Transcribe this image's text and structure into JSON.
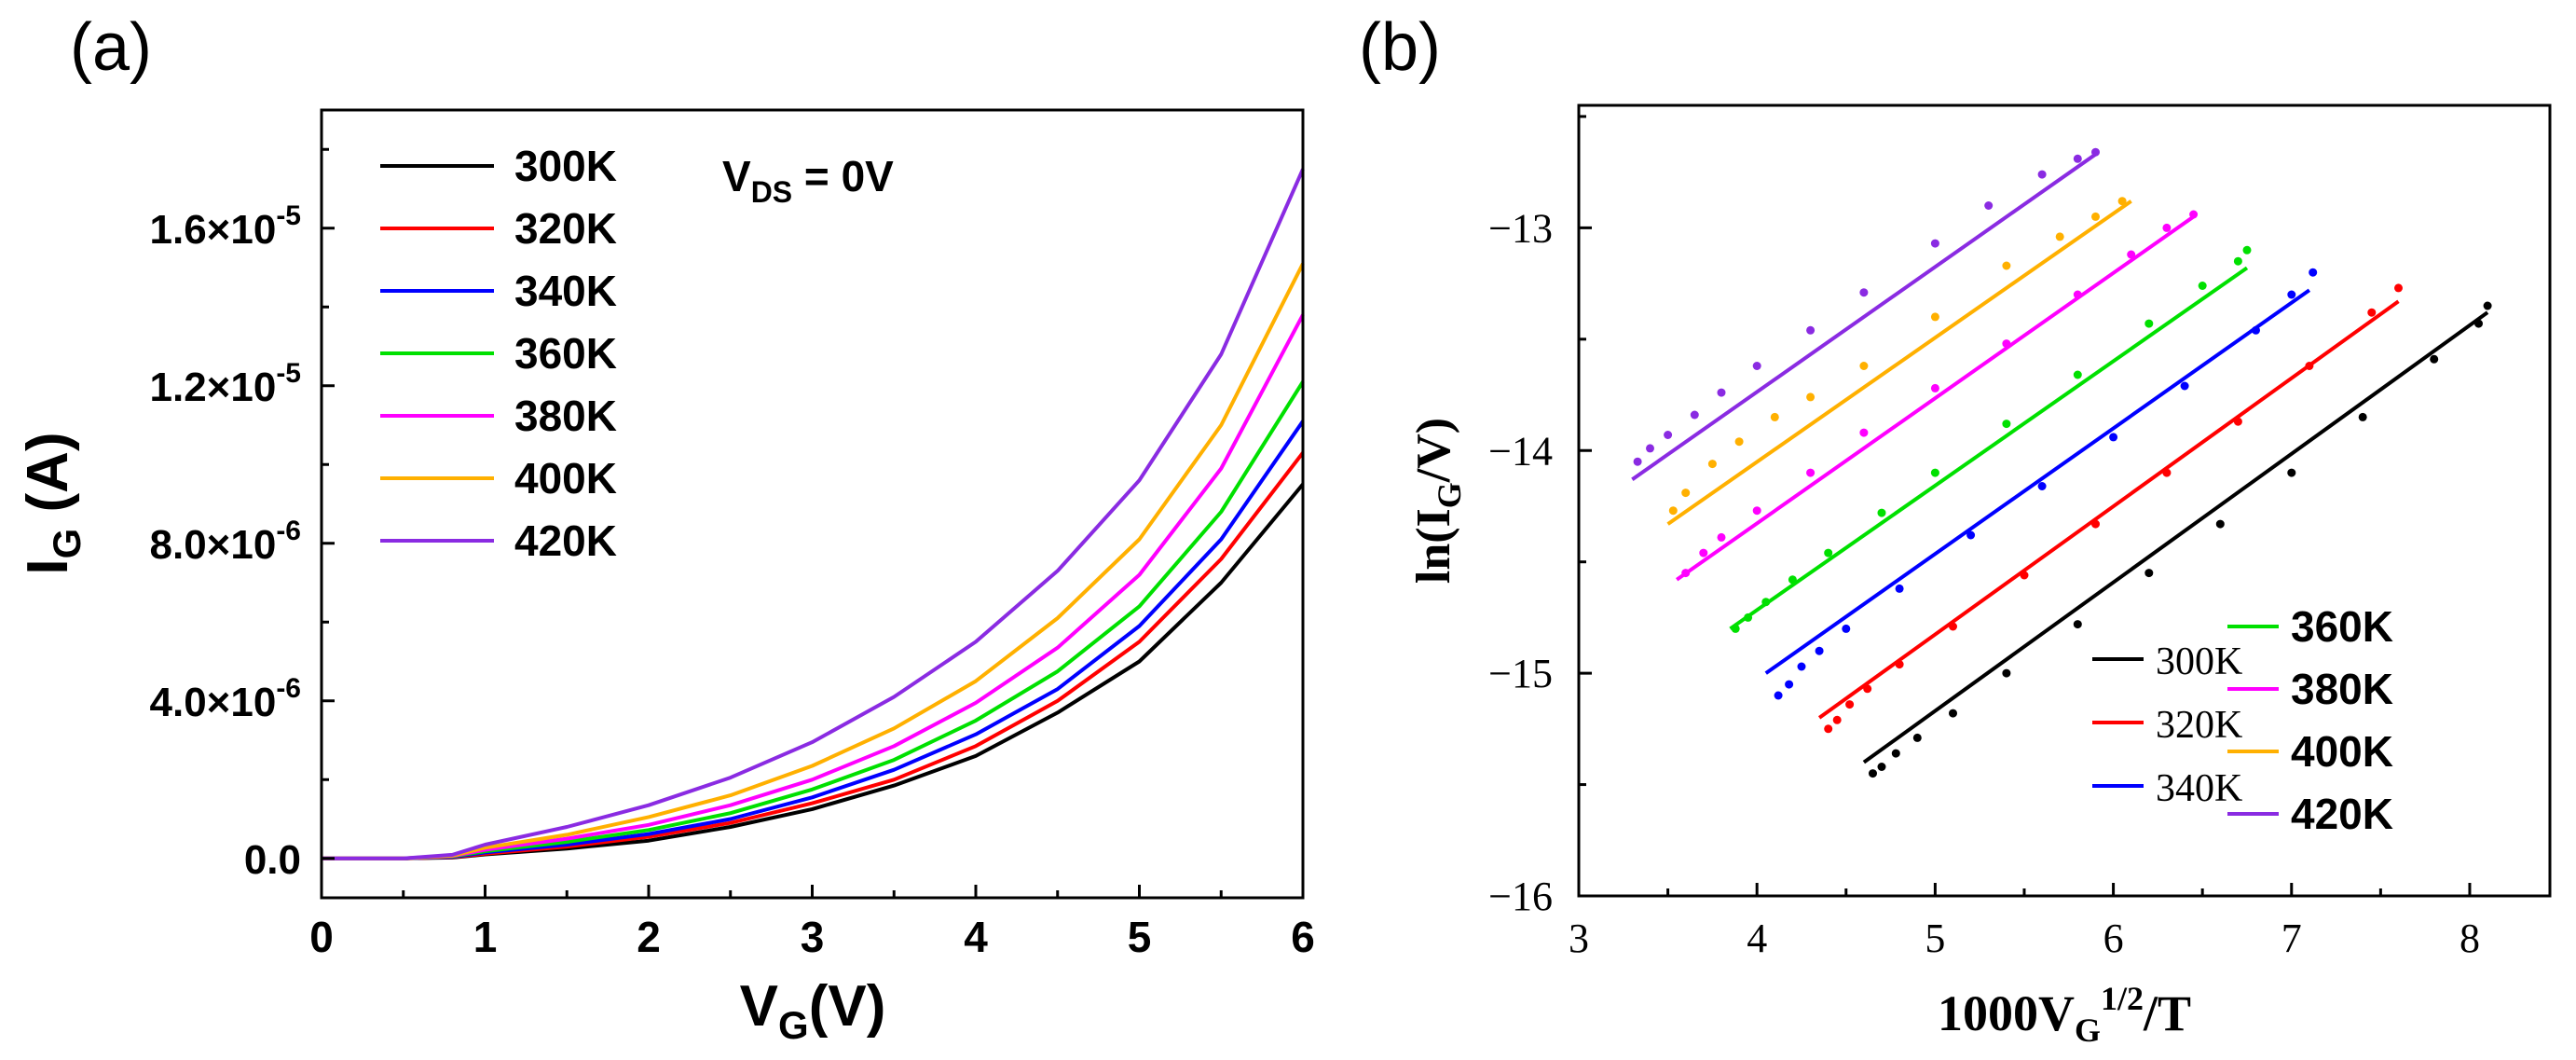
{
  "chart_data": [
    {
      "panel_label": "(a)",
      "type": "line",
      "xlabel_main": "V",
      "xlabel_sub": "G",
      "xlabel_tail": "(V)",
      "ylabel_main": "I",
      "ylabel_sub": "G",
      "ylabel_tail": " (A)",
      "xlim": [
        0,
        6
      ],
      "ylim": [
        -1e-06,
        1.9e-05
      ],
      "xticks": [
        0,
        1,
        2,
        3,
        4,
        5,
        6
      ],
      "yticks": [
        {
          "value": 0,
          "mant": "0.0",
          "exp": ""
        },
        {
          "value": 4e-06,
          "mant": "4.0×10",
          "exp": "-6"
        },
        {
          "value": 8e-06,
          "mant": "8.0×10",
          "exp": "-6"
        },
        {
          "value": 1.2e-05,
          "mant": "1.2×10",
          "exp": "-5"
        },
        {
          "value": 1.6e-05,
          "mant": "1.6×10",
          "exp": "-5"
        }
      ],
      "annotation": {
        "main": "V",
        "sub": "DS",
        "tail": " = 0V"
      },
      "legend_position": "top-left",
      "x": [
        0,
        0.5,
        0.8,
        1,
        1.5,
        2,
        2.5,
        3,
        3.5,
        4,
        4.5,
        5,
        5.5,
        6
      ],
      "series": [
        {
          "name": "300K",
          "color": "#000000",
          "values": [
            0,
            0,
            2e-08,
            1e-07,
            2.5e-07,
            4.5e-07,
            8e-07,
            1.25e-06,
            1.85e-06,
            2.6e-06,
            3.7e-06,
            5e-06,
            7e-06,
            9.5e-06
          ]
        },
        {
          "name": "320K",
          "color": "#ff0000",
          "values": [
            0,
            0,
            3e-08,
            1.2e-07,
            3e-07,
            5.5e-07,
            9e-07,
            1.4e-06,
            2e-06,
            2.85e-06,
            4e-06,
            5.5e-06,
            7.6e-06,
            1.03e-05
          ]
        },
        {
          "name": "340K",
          "color": "#0000ff",
          "values": [
            0,
            0,
            4e-08,
            1.5e-07,
            3.5e-07,
            6.2e-07,
            1e-06,
            1.55e-06,
            2.25e-06,
            3.15e-06,
            4.3e-06,
            5.9e-06,
            8.1e-06,
            1.11e-05
          ]
        },
        {
          "name": "360K",
          "color": "#00e000",
          "values": [
            0,
            0,
            5e-08,
            1.8e-07,
            4.2e-07,
            7.2e-07,
            1.15e-06,
            1.75e-06,
            2.5e-06,
            3.5e-06,
            4.75e-06,
            6.4e-06,
            8.8e-06,
            1.21e-05
          ]
        },
        {
          "name": "380K",
          "color": "#ff00ff",
          "values": [
            0,
            0,
            6e-08,
            2.2e-07,
            5e-07,
            8.5e-07,
            1.35e-06,
            2e-06,
            2.85e-06,
            3.95e-06,
            5.35e-06,
            7.2e-06,
            9.9e-06,
            1.38e-05
          ]
        },
        {
          "name": "400K",
          "color": "#ffb000",
          "values": [
            0,
            0,
            7e-08,
            2.7e-07,
            6e-07,
            1.05e-06,
            1.6e-06,
            2.35e-06,
            3.3e-06,
            4.5e-06,
            6.1e-06,
            8.1e-06,
            1.1e-05,
            1.51e-05
          ]
        },
        {
          "name": "420K",
          "color": "#8a2be2",
          "values": [
            0,
            0,
            9e-08,
            3.5e-07,
            8e-07,
            1.35e-06,
            2.05e-06,
            2.95e-06,
            4.1e-06,
            5.5e-06,
            7.3e-06,
            9.6e-06,
            1.28e-05,
            1.75e-05
          ]
        }
      ]
    },
    {
      "panel_label": "(b)",
      "type": "scatter",
      "xlabel_main": "1000V",
      "xlabel_sub": "G",
      "xlabel_sup": "1/2",
      "xlabel_tail": "/T",
      "ylabel_main": "ln(I",
      "ylabel_sub": "G",
      "ylabel_tail": "/V)",
      "xlim": [
        3,
        8.45
      ],
      "ylim": [
        -16,
        -12.45
      ],
      "xticks": [
        3,
        4,
        5,
        6,
        7,
        8
      ],
      "yticks": [
        {
          "value": -16,
          "label": "−16"
        },
        {
          "value": -15,
          "label": "−15"
        },
        {
          "value": -14,
          "label": "−14"
        },
        {
          "value": -13,
          "label": "−13"
        }
      ],
      "legend_position": "bottom-right",
      "series": [
        {
          "name": "300K",
          "color": "#000000",
          "fit": {
            "x": [
              4.6,
              8.1
            ],
            "y": [
              -15.4,
              -13.38
            ]
          },
          "x": [
            4.65,
            4.7,
            4.78,
            4.9,
            5.1,
            5.4,
            5.8,
            6.2,
            6.6,
            7.0,
            7.4,
            7.8,
            8.05,
            8.1
          ],
          "y": [
            -15.45,
            -15.42,
            -15.36,
            -15.29,
            -15.18,
            -15.0,
            -14.78,
            -14.55,
            -14.33,
            -14.1,
            -13.85,
            -13.59,
            -13.43,
            -13.35
          ]
        },
        {
          "name": "320K",
          "color": "#ff0000",
          "fit": {
            "x": [
              4.35,
              7.6
            ],
            "y": [
              -15.2,
              -13.33
            ]
          },
          "x": [
            4.4,
            4.45,
            4.52,
            4.62,
            4.8,
            5.1,
            5.5,
            5.9,
            6.3,
            6.7,
            7.1,
            7.45,
            7.6
          ],
          "y": [
            -15.25,
            -15.21,
            -15.14,
            -15.07,
            -14.96,
            -14.79,
            -14.56,
            -14.33,
            -14.1,
            -13.87,
            -13.62,
            -13.38,
            -13.27
          ]
        },
        {
          "name": "340K",
          "color": "#0000ff",
          "fit": {
            "x": [
              4.05,
              7.1
            ],
            "y": [
              -15.0,
              -13.28
            ]
          },
          "x": [
            4.12,
            4.18,
            4.25,
            4.35,
            4.5,
            4.8,
            5.2,
            5.6,
            6.0,
            6.4,
            6.8,
            7.0,
            7.12
          ],
          "y": [
            -15.1,
            -15.05,
            -14.97,
            -14.9,
            -14.8,
            -14.62,
            -14.38,
            -14.16,
            -13.94,
            -13.71,
            -13.46,
            -13.3,
            -13.2
          ]
        },
        {
          "name": "360K",
          "color": "#00e000",
          "fit": {
            "x": [
              3.85,
              6.75
            ],
            "y": [
              -14.8,
              -13.18
            ]
          },
          "x": [
            3.88,
            3.95,
            4.05,
            4.2,
            4.4,
            4.7,
            5.0,
            5.4,
            5.8,
            6.2,
            6.5,
            6.7,
            6.75
          ],
          "y": [
            -14.8,
            -14.75,
            -14.68,
            -14.58,
            -14.46,
            -14.28,
            -14.1,
            -13.88,
            -13.66,
            -13.43,
            -13.26,
            -13.15,
            -13.1
          ]
        },
        {
          "name": "380K",
          "color": "#ff00ff",
          "fit": {
            "x": [
              3.55,
              6.45
            ],
            "y": [
              -14.58,
              -12.95
            ]
          },
          "x": [
            3.6,
            3.7,
            3.8,
            4.0,
            4.3,
            4.6,
            5.0,
            5.4,
            5.8,
            6.1,
            6.3,
            6.45
          ],
          "y": [
            -14.55,
            -14.46,
            -14.39,
            -14.27,
            -14.1,
            -13.92,
            -13.72,
            -13.52,
            -13.3,
            -13.12,
            -13.0,
            -12.94
          ]
        },
        {
          "name": "400K",
          "color": "#ffb000",
          "fit": {
            "x": [
              3.5,
              6.1
            ],
            "y": [
              -14.33,
              -12.88
            ]
          },
          "x": [
            3.53,
            3.6,
            3.75,
            3.9,
            4.1,
            4.3,
            4.6,
            5.0,
            5.4,
            5.7,
            5.9,
            6.05
          ],
          "y": [
            -14.27,
            -14.19,
            -14.06,
            -13.96,
            -13.85,
            -13.76,
            -13.62,
            -13.4,
            -13.17,
            -13.04,
            -12.95,
            -12.88
          ]
        },
        {
          "name": "420K",
          "color": "#8a2be2",
          "fit": {
            "x": [
              3.3,
              5.9
            ],
            "y": [
              -14.13,
              -12.67
            ]
          },
          "x": [
            3.33,
            3.4,
            3.5,
            3.65,
            3.8,
            4.0,
            4.3,
            4.6,
            5.0,
            5.3,
            5.6,
            5.8,
            5.9
          ],
          "y": [
            -14.05,
            -13.99,
            -13.93,
            -13.84,
            -13.74,
            -13.62,
            -13.46,
            -13.29,
            -13.07,
            -12.9,
            -12.76,
            -12.69,
            -12.66
          ]
        }
      ]
    }
  ]
}
